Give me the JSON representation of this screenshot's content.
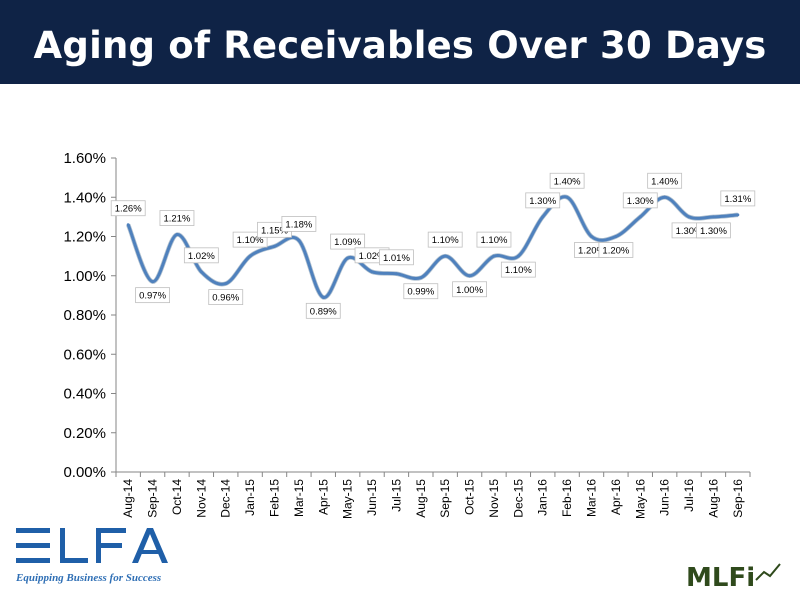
{
  "slide": {
    "title": "Aging of Receivables Over 30 Days"
  },
  "logos": {
    "elfa": {
      "text": "ELFA",
      "tagline": "Equipping Business for Success",
      "color": "#1f5fa8"
    },
    "mlfi": {
      "text": "MLFi",
      "color": "#2f4a1c"
    }
  },
  "colors": {
    "header": "#0f2346",
    "line": "#4f81bd"
  },
  "chart_data": {
    "type": "line",
    "title": "",
    "xlabel": "",
    "ylabel": "",
    "ylim": [
      0,
      1.6
    ],
    "yticks": [
      "0.00%",
      "0.20%",
      "0.40%",
      "0.60%",
      "0.80%",
      "1.00%",
      "1.20%",
      "1.40%",
      "1.60%"
    ],
    "grid": false,
    "legend": "none",
    "categories": [
      "Aug-14",
      "Sep-14",
      "Oct-14",
      "Nov-14",
      "Dec-14",
      "Jan-15",
      "Feb-15",
      "Mar-15",
      "Apr-15",
      "May-15",
      "Jun-15",
      "Jul-15",
      "Aug-15",
      "Sep-15",
      "Oct-15",
      "Nov-15",
      "Dec-15",
      "Jan-16",
      "Feb-16",
      "Mar-16",
      "Apr-16",
      "May-16",
      "Jun-16",
      "Jul-16",
      "Aug-16",
      "Sep-16"
    ],
    "series": [
      {
        "values": [
          1.26,
          0.97,
          1.21,
          1.02,
          0.96,
          1.1,
          1.15,
          1.18,
          0.89,
          1.09,
          1.02,
          1.01,
          0.99,
          1.1,
          1.0,
          1.1,
          1.1,
          1.3,
          1.4,
          1.2,
          1.2,
          1.3,
          1.4,
          1.3,
          1.3,
          1.31
        ],
        "labels": [
          "1.26%",
          "0.97%",
          "1.21%",
          "1.02%",
          "0.96%",
          "1.10%",
          "1.15%",
          "1.18%",
          "0.89%",
          "1.09%",
          "1.02%",
          "1.01%",
          "0.99%",
          "1.10%",
          "1.00%",
          "1.10%",
          "1.10%",
          "1.30%",
          "1.40%",
          "1.20%",
          "1.20%",
          "1.30%",
          "1.40%",
          "1.30%",
          "1.30%",
          "1.31%"
        ]
      }
    ]
  }
}
